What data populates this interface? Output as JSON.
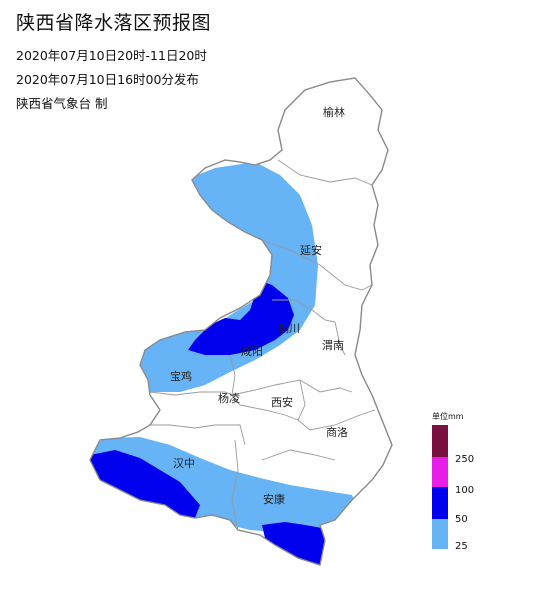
{
  "title": "陕西省降水落区预报图",
  "valid_period": "2020年07月10日20时-11日20时",
  "issued": "2020年07月10日16时00分发布",
  "issuer": "陕西省气象台 制",
  "cities": {
    "yulin": "榆林",
    "yanan": "延安",
    "tongchuan": "铜川",
    "xianyang": "咸阳",
    "weinan": "渭南",
    "baoji": "宝鸡",
    "yangling": "杨凌",
    "xian": "西安",
    "shangluo": "商洛",
    "hanzhong": "汉中",
    "ankang": "安康"
  },
  "legend": {
    "title": "单位mm",
    "items": [
      {
        "label": "250",
        "color": "#7a1040"
      },
      {
        "label": "100",
        "color": "#e81ee8"
      },
      {
        "label": "50",
        "color": "#0000ee"
      },
      {
        "label": "25",
        "color": "#66b3f5"
      }
    ],
    "bottom_label": "25"
  },
  "colors": {
    "rain_25": "#66b3f5",
    "rain_50": "#0000ee",
    "boundary": "#9a9a9a"
  }
}
